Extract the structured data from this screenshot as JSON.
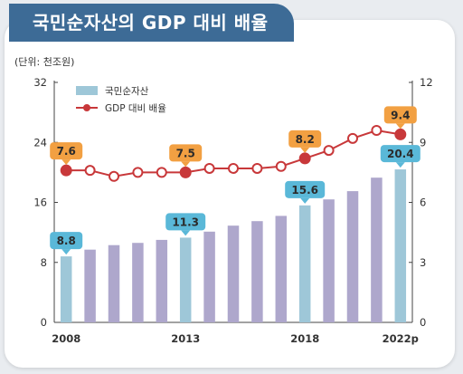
{
  "title": "국민순자산의 GDP 대비 배율",
  "unit": "(단위: 천조원)",
  "colors": {
    "title_bg": "#3d6b96",
    "bar_default": "#aea7cc",
    "bar_highlight": "#9ec7d8",
    "line": "#c8383a",
    "callout_blue": "#5ab8d8",
    "callout_orange": "#f2a042"
  },
  "chart_data": {
    "type": "bar+line",
    "categories": [
      "2008",
      "2009",
      "2010",
      "2011",
      "2012",
      "2013",
      "2014",
      "2015",
      "2016",
      "2017",
      "2018",
      "2019",
      "2020",
      "2021",
      "2022p"
    ],
    "x_tick_labels": [
      "2008",
      "2013",
      "2018",
      "2022p"
    ],
    "series": [
      {
        "name": "국민순자산",
        "type": "bar",
        "axis": "left",
        "values": [
          8.8,
          9.7,
          10.3,
          10.6,
          11.0,
          11.3,
          12.1,
          12.9,
          13.5,
          14.2,
          15.6,
          16.4,
          17.5,
          19.3,
          20.4
        ],
        "highlight_indices": [
          0,
          5,
          10,
          14
        ]
      },
      {
        "name": "GDP 대비 배율",
        "type": "line",
        "axis": "right",
        "values": [
          7.6,
          7.6,
          7.3,
          7.5,
          7.5,
          7.5,
          7.7,
          7.7,
          7.7,
          7.8,
          8.2,
          8.6,
          9.2,
          9.6,
          9.4
        ]
      }
    ],
    "y_left": {
      "min": 0,
      "max": 32,
      "ticks": [
        "0",
        "8",
        "16",
        "24",
        "32"
      ]
    },
    "y_right": {
      "min": 0,
      "max": 12,
      "ticks": [
        "0",
        "3",
        "6",
        "9",
        "12"
      ]
    },
    "bar_callouts": [
      {
        "index": 0,
        "text": "8.8"
      },
      {
        "index": 5,
        "text": "11.3"
      },
      {
        "index": 10,
        "text": "15.6"
      },
      {
        "index": 14,
        "text": "20.4"
      }
    ],
    "line_callouts": [
      {
        "index": 0,
        "text": "7.6"
      },
      {
        "index": 5,
        "text": "7.5"
      },
      {
        "index": 10,
        "text": "8.2"
      },
      {
        "index": 14,
        "text": "9.4"
      }
    ],
    "legend": [
      {
        "label": "국민순자산",
        "kind": "bar"
      },
      {
        "label": "GDP 대비 배율",
        "kind": "line"
      }
    ],
    "legend_position": "top-left",
    "grid": false
  }
}
